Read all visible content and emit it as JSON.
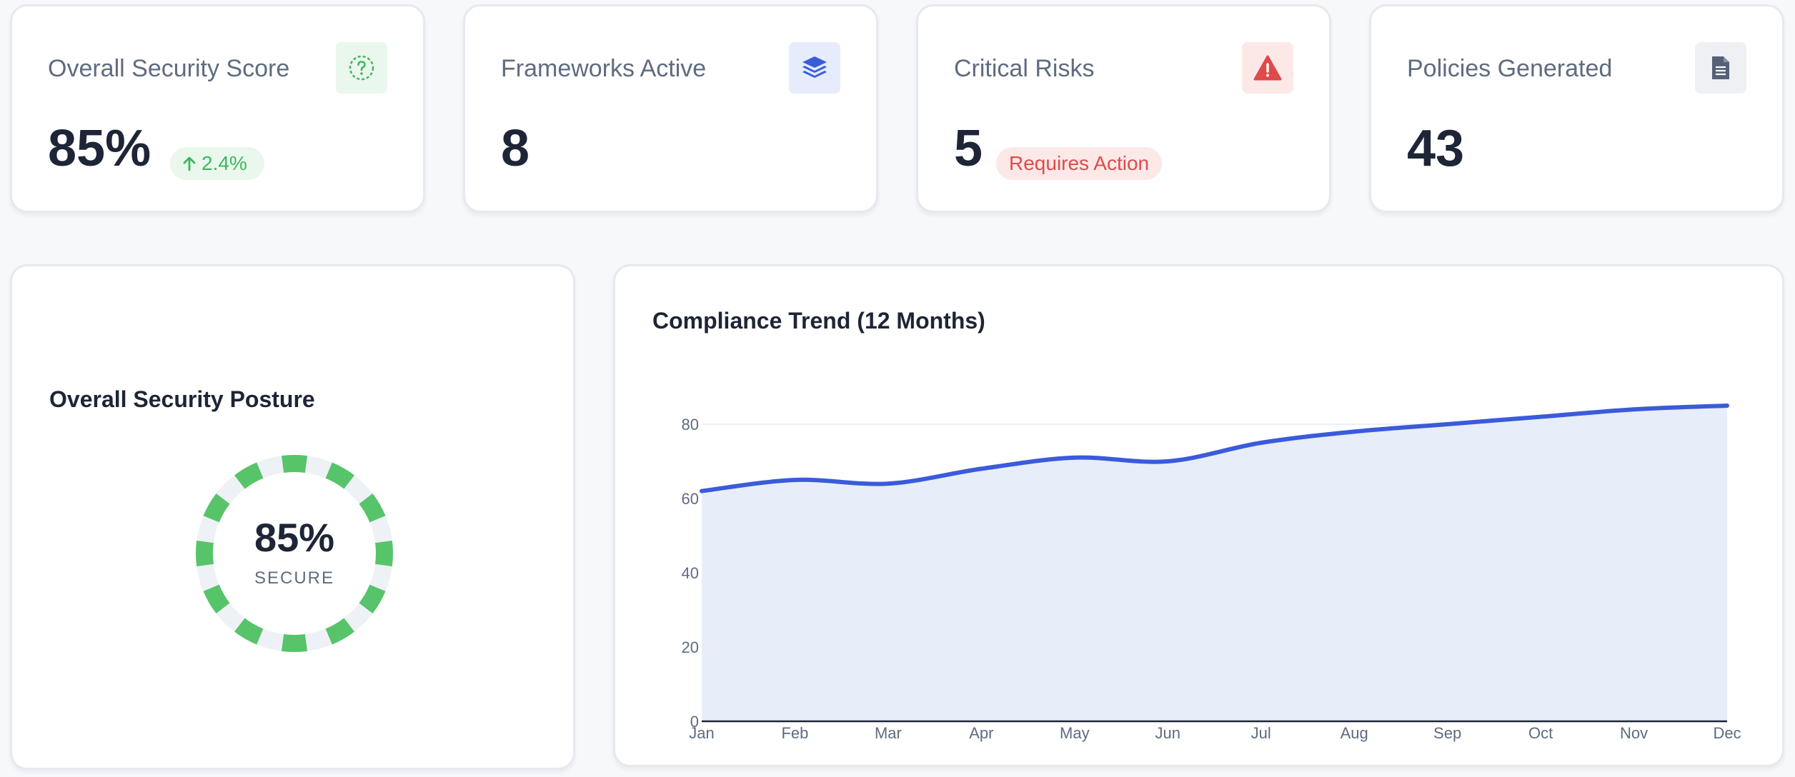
{
  "stats": [
    {
      "label": "Overall Security Score",
      "value": "85%",
      "icon": "question-circle-icon",
      "badge": "2.4%",
      "badge_icon": "arrow-up-icon",
      "accent": "#3fb75d"
    },
    {
      "label": "Frameworks Active",
      "value": "8",
      "icon": "layers-icon",
      "accent": "#3b5bdb"
    },
    {
      "label": "Critical Risks",
      "value": "5",
      "icon": "warning-icon",
      "badge": "Requires Action",
      "accent": "#df4a4a"
    },
    {
      "label": "Policies Generated",
      "value": "43",
      "icon": "document-icon",
      "accent": "#566176"
    }
  ],
  "posture": {
    "title": "Overall Security Posture",
    "value": "85%",
    "caption": "SECURE",
    "score": 0.85,
    "color": "#57c46a"
  },
  "trend": {
    "title": "Compliance Trend (12 Months)",
    "line_color": "#3b5bdb",
    "fill_color": "#e8eef9"
  },
  "chart_data": {
    "type": "area",
    "title": "Compliance Trend (12 Months)",
    "xlabel": "",
    "ylabel": "",
    "categories": [
      "Jan",
      "Feb",
      "Mar",
      "Apr",
      "May",
      "Jun",
      "Jul",
      "Aug",
      "Sep",
      "Oct",
      "Nov",
      "Dec"
    ],
    "values": [
      62,
      65,
      64,
      68,
      71,
      70,
      75,
      78,
      80,
      82,
      84,
      85
    ],
    "ylim": [
      0,
      90
    ],
    "yticks": [
      0,
      20,
      40,
      60,
      80
    ],
    "grid": true,
    "legend": "none"
  }
}
